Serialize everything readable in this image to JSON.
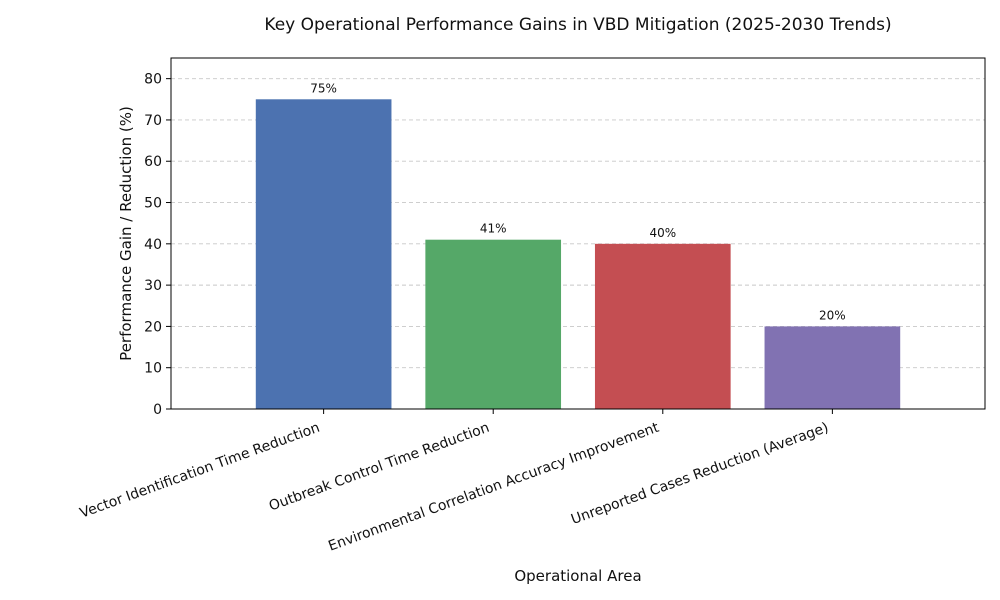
{
  "chart_data": {
    "type": "bar",
    "title": "Key Operational Performance Gains in VBD Mitigation (2025-2030 Trends)",
    "xlabel": "Operational Area",
    "ylabel": "Performance Gain / Reduction (%)",
    "categories": [
      "Vector Identification Time Reduction",
      "Outbreak Control Time Reduction",
      "Environmental Correlation Accuracy Improvement",
      "Unreported Cases Reduction (Average)"
    ],
    "values": [
      75,
      41,
      40,
      20
    ],
    "data_labels": [
      "75%",
      "41%",
      "40%",
      "20%"
    ],
    "colors": [
      "#4c72b0",
      "#55a868",
      "#c44e52",
      "#8172b2"
    ],
    "ylim": [
      0,
      85
    ],
    "yticks": [
      0,
      10,
      20,
      30,
      40,
      50,
      60,
      70,
      80
    ],
    "grid": "horizontal dashed",
    "legend": "none"
  }
}
